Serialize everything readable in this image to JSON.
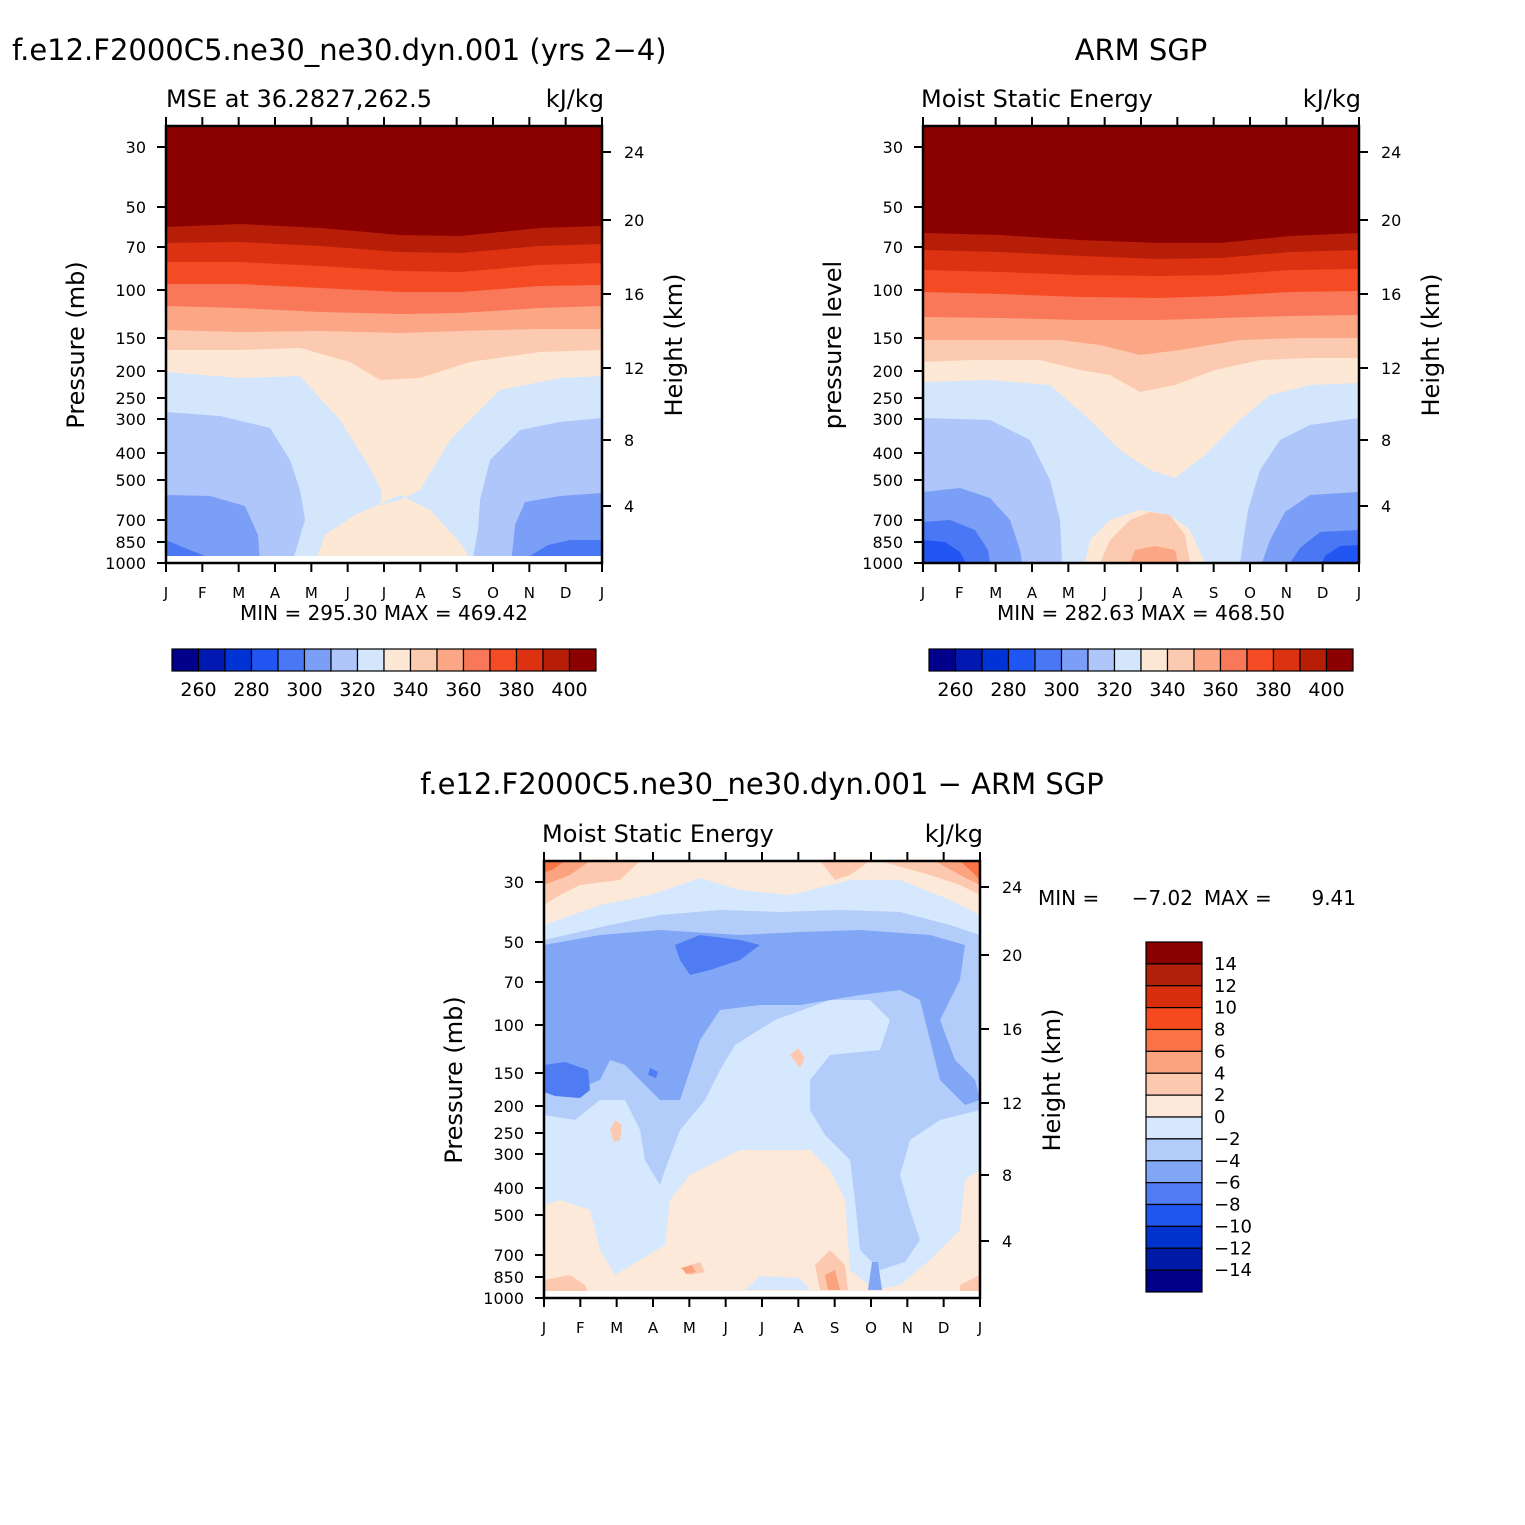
{
  "palette": {
    "temps": [
      "#00008b",
      "#0019b0",
      "#0033d6",
      "#2156f2",
      "#4a78f5",
      "#7b9ef7",
      "#aec6fa",
      "#d4e6fc",
      "#fde8d6",
      "#fccab0",
      "#fba786",
      "#f9785a",
      "#f54b25",
      "#dd3211",
      "#b71e08",
      "#8b0000"
    ],
    "diff": [
      "#00008b",
      "#001aa8",
      "#0033cc",
      "#1f56ee",
      "#4f7cf3",
      "#82a6f6",
      "#b3cdfa",
      "#d6e8fd",
      "#fde9d9",
      "#fcc9b0",
      "#fba27e",
      "#fa7446",
      "#f54a1e",
      "#d92e0c",
      "#b1200a",
      "#8b0000"
    ]
  },
  "chart_data": [
    {
      "type": "heatmap",
      "title": "f.e12.F2000C5.ne30_ne30.dyn.001 (yrs 2−4)",
      "left_string": "MSE at 36.2827,262.5",
      "right_string": "kJ/kg",
      "ylabel": "Pressure (mb)",
      "ylabel_right": "Height (km)",
      "x_ticks": [
        "J",
        "F",
        "M",
        "A",
        "M",
        "J",
        "J",
        "A",
        "S",
        "O",
        "N",
        "D",
        "J"
      ],
      "y_ticks": [
        "30",
        "50",
        "70",
        "100",
        "150",
        "200",
        "250",
        "300",
        "400",
        "500",
        "700",
        "850",
        "1000"
      ],
      "y_right_ticks": [
        "24",
        "20",
        "16",
        "12",
        "8",
        "4"
      ],
      "min_max_text": "MIN = 295.30 MAX = 469.42",
      "min": 295.3,
      "max": 469.42,
      "colorbar": {
        "orientation": "horizontal",
        "labels": [
          "260",
          "280",
          "300",
          "320",
          "340",
          "360",
          "380",
          "400"
        ],
        "levels": [
          250,
          260,
          270,
          280,
          290,
          300,
          310,
          320,
          330,
          340,
          350,
          360,
          370,
          380,
          390,
          400,
          410
        ]
      }
    },
    {
      "type": "heatmap",
      "title": "ARM SGP",
      "left_string": "Moist Static Energy",
      "right_string": "kJ/kg",
      "ylabel": "pressure level",
      "ylabel_right": "Height (km)",
      "x_ticks": [
        "J",
        "F",
        "M",
        "A",
        "M",
        "J",
        "J",
        "A",
        "S",
        "O",
        "N",
        "D",
        "J"
      ],
      "y_ticks": [
        "30",
        "50",
        "70",
        "100",
        "150",
        "200",
        "250",
        "300",
        "400",
        "500",
        "700",
        "850",
        "1000"
      ],
      "y_right_ticks": [
        "24",
        "20",
        "16",
        "12",
        "8",
        "4"
      ],
      "min_max_text": "MIN = 282.63 MAX = 468.50",
      "min": 282.63,
      "max": 468.5,
      "colorbar": {
        "orientation": "horizontal",
        "labels": [
          "260",
          "280",
          "300",
          "320",
          "340",
          "360",
          "380",
          "400"
        ],
        "levels": [
          250,
          260,
          270,
          280,
          290,
          300,
          310,
          320,
          330,
          340,
          350,
          360,
          370,
          380,
          390,
          400,
          410
        ]
      }
    },
    {
      "type": "heatmap",
      "title": "f.e12.F2000C5.ne30_ne30.dyn.001 − ARM SGP",
      "left_string": "Moist Static Energy",
      "right_string": "kJ/kg",
      "ylabel": "Pressure (mb)",
      "ylabel_right": "Height (km)",
      "x_ticks": [
        "J",
        "F",
        "M",
        "A",
        "M",
        "J",
        "J",
        "A",
        "S",
        "O",
        "N",
        "D",
        "J"
      ],
      "y_ticks": [
        "30",
        "50",
        "70",
        "100",
        "150",
        "200",
        "250",
        "300",
        "400",
        "500",
        "700",
        "850",
        "1000"
      ],
      "y_right_ticks": [
        "24",
        "20",
        "16",
        "12",
        "8",
        "4"
      ],
      "min_label": "MIN =",
      "min_value": "−7.02",
      "max_label": "MAX =",
      "max_value": "9.41",
      "min": -7.02,
      "max": 9.41,
      "colorbar": {
        "orientation": "vertical",
        "labels": [
          "14",
          "12",
          "10",
          "8",
          "6",
          "4",
          "2",
          "0",
          "−2",
          "−4",
          "−6",
          "−8",
          "−10",
          "−12",
          "−14"
        ],
        "levels": [
          -16,
          -14,
          -12,
          -10,
          -8,
          -6,
          -4,
          -2,
          0,
          2,
          4,
          6,
          8,
          10,
          12,
          14,
          16
        ]
      }
    }
  ]
}
